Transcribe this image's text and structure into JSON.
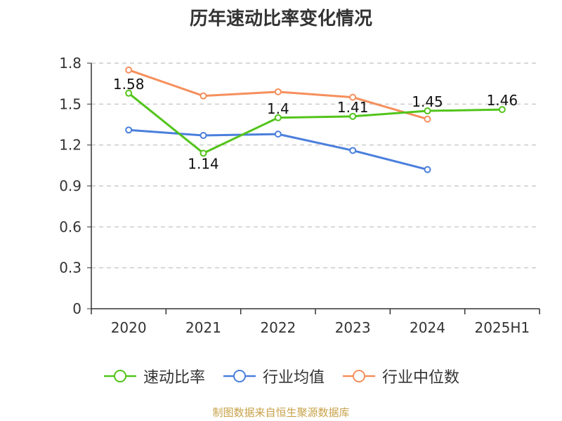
{
  "chart_data": {
    "type": "line",
    "title": "历年速动比率变化情况",
    "categories": [
      "2020",
      "2021",
      "2022",
      "2023",
      "2024",
      "2025H1"
    ],
    "yticks": [
      "0",
      "0.3",
      "0.6",
      "0.9",
      "1.2",
      "1.5",
      "1.8"
    ],
    "ylim": [
      0,
      1.8
    ],
    "grid": true,
    "legend_position": "bottom",
    "series": [
      {
        "name": "速动比率",
        "color": "#52c41a",
        "values": [
          1.58,
          1.14,
          1.4,
          1.41,
          1.45,
          1.46
        ],
        "labels": [
          "1.58",
          "1.14",
          "1.4",
          "1.41",
          "1.45",
          "1.46"
        ]
      },
      {
        "name": "行业均值",
        "color": "#4a7fdc",
        "values": [
          1.31,
          1.27,
          1.28,
          1.16,
          1.02,
          null
        ]
      },
      {
        "name": "行业中位数",
        "color": "#f58f5c",
        "values": [
          1.75,
          1.56,
          1.59,
          1.55,
          1.39,
          null
        ]
      }
    ]
  },
  "source": {
    "text": "制图数据来自恒生聚源数据库",
    "color": "#c8a24a"
  }
}
